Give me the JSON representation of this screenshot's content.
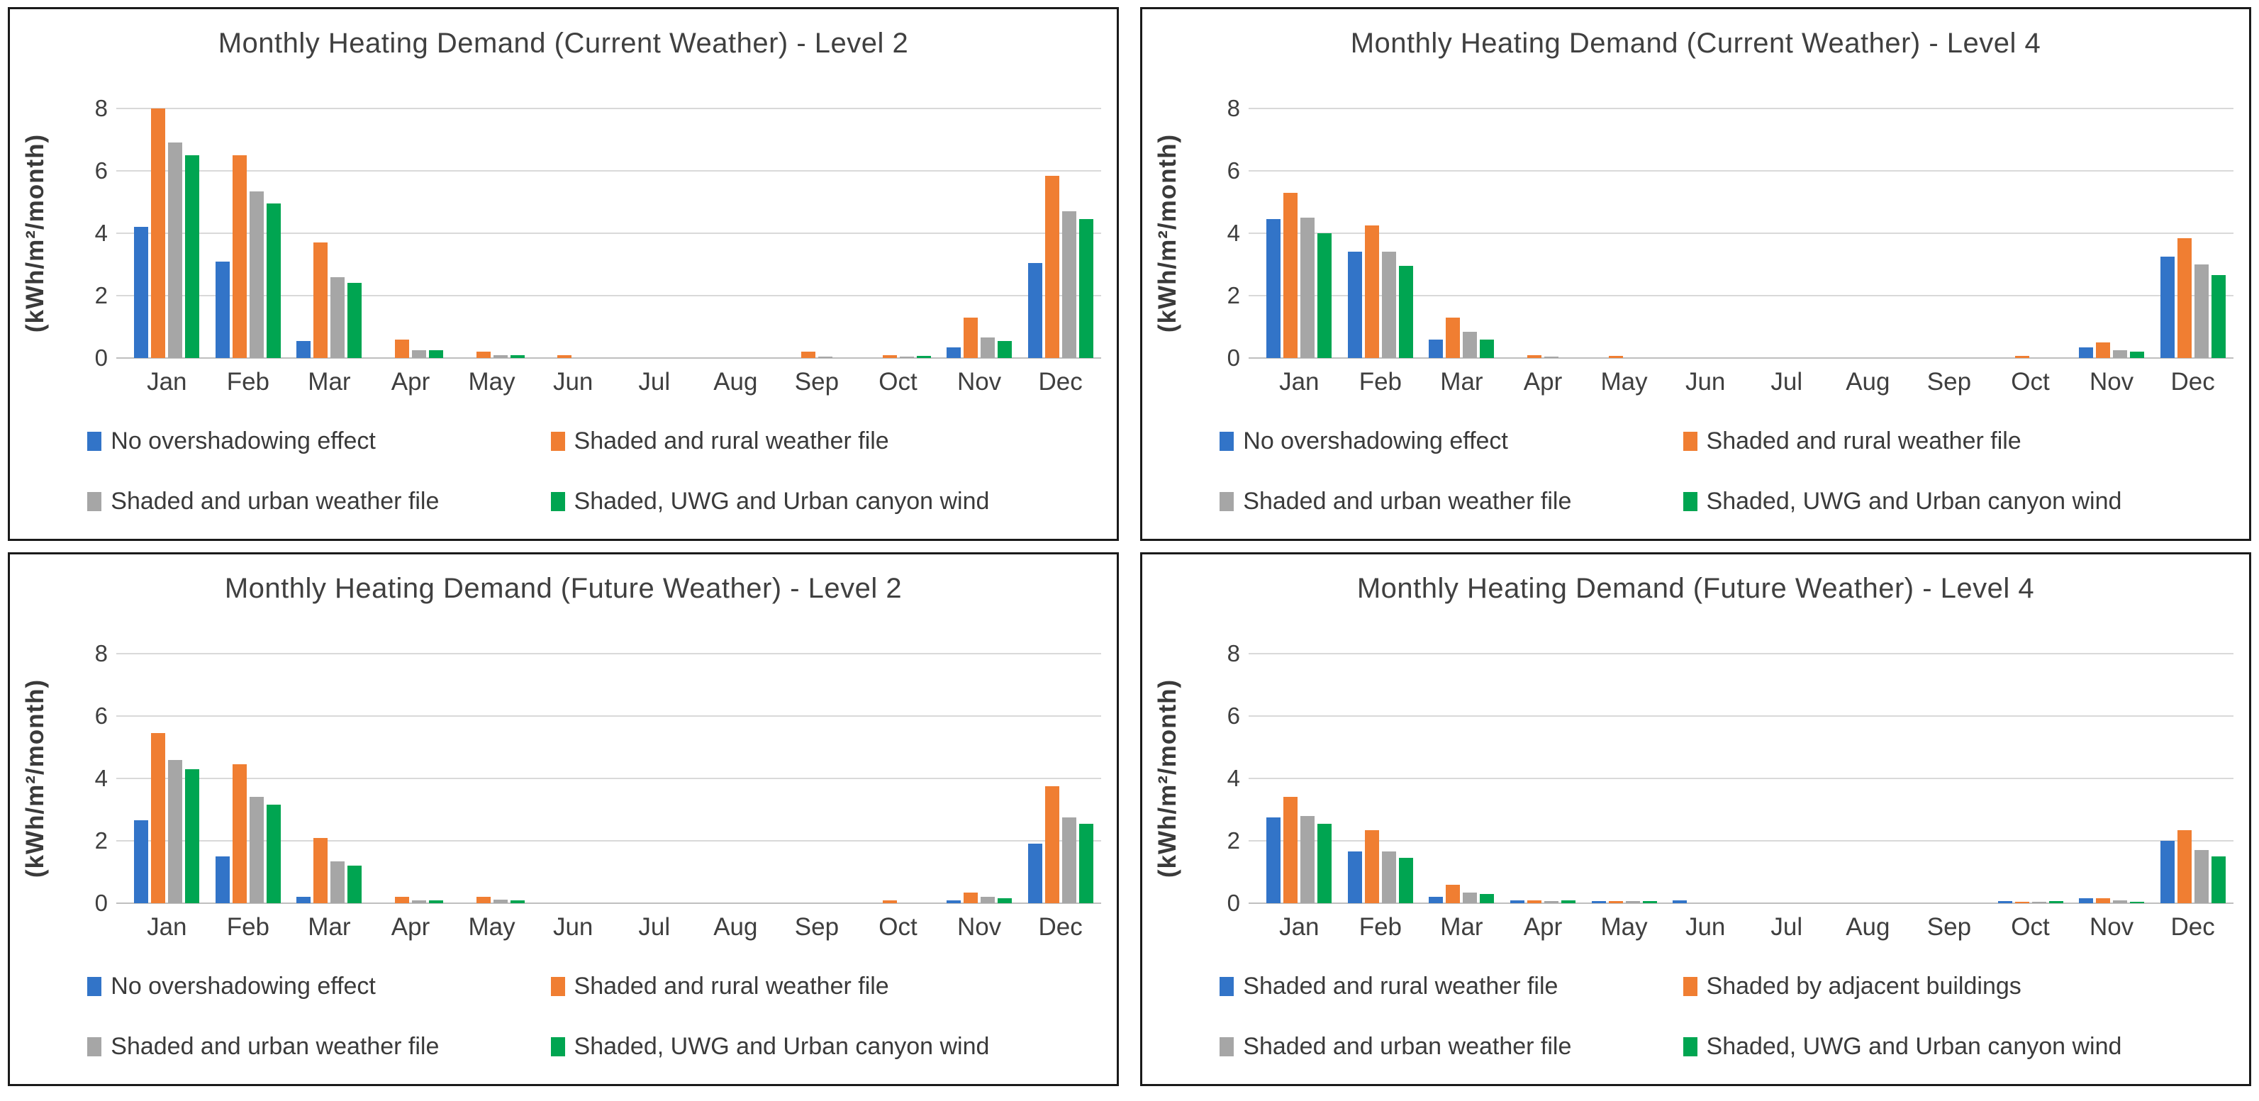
{
  "page": {
    "background": "#ffffff",
    "panel_border": "#1a1a1a"
  },
  "colors": {
    "blue": "#3274C8",
    "orange": "#F07E32",
    "gray": "#A6A6A6",
    "green": "#00A551",
    "gridline": "#d9d9d9",
    "axis_line": "#bfbfbf",
    "text": "#3f3f3f"
  },
  "months": [
    "Jan",
    "Feb",
    "Mar",
    "Apr",
    "May",
    "Jun",
    "Jul",
    "Aug",
    "Sep",
    "Oct",
    "Nov",
    "Dec"
  ],
  "chart_data": [
    {
      "type": "bar",
      "title": "Monthly Heating Demand (Current Weather) - Level 2",
      "ylabel": "(kWh/m²/month)",
      "ylim": [
        0,
        8
      ],
      "yticks": [
        0,
        2,
        4,
        6,
        8
      ],
      "grid": true,
      "legend_position": "bottom",
      "categories": [
        "Jan",
        "Feb",
        "Mar",
        "Apr",
        "May",
        "Jun",
        "Jul",
        "Aug",
        "Sep",
        "Oct",
        "Nov",
        "Dec"
      ],
      "series": [
        {
          "name": "No overshadowing effect",
          "color": "#3274C8",
          "values": [
            4.2,
            3.1,
            0.55,
            0,
            0,
            0,
            0,
            0,
            0,
            0,
            0.35,
            3.05
          ]
        },
        {
          "name": "Shaded and rural weather file",
          "color": "#F07E32",
          "values": [
            8.0,
            6.5,
            3.7,
            0.6,
            0.2,
            0.1,
            0,
            0,
            0.2,
            0.1,
            1.3,
            5.85
          ]
        },
        {
          "name": "Shaded and urban weather file",
          "color": "#A6A6A6",
          "values": [
            6.9,
            5.35,
            2.6,
            0.25,
            0.1,
            0,
            0,
            0,
            0.05,
            0.05,
            0.65,
            4.7
          ]
        },
        {
          "name": "Shaded, UWG and Urban canyon wind",
          "color": "#00A551",
          "values": [
            6.5,
            4.95,
            2.4,
            0.25,
            0.1,
            0,
            0,
            0,
            0,
            0.07,
            0.55,
            4.45
          ]
        }
      ]
    },
    {
      "type": "bar",
      "title": "Monthly Heating Demand (Current Weather) - Level 4",
      "ylabel": "(kWh/m²/month)",
      "ylim": [
        0,
        8
      ],
      "yticks": [
        0,
        2,
        4,
        6,
        8
      ],
      "grid": true,
      "legend_position": "bottom",
      "categories": [
        "Jan",
        "Feb",
        "Mar",
        "Apr",
        "May",
        "Jun",
        "Jul",
        "Aug",
        "Sep",
        "Oct",
        "Nov",
        "Dec"
      ],
      "series": [
        {
          "name": "No overshadowing effect",
          "color": "#3274C8",
          "values": [
            4.45,
            3.4,
            0.6,
            0,
            0,
            0,
            0,
            0,
            0,
            0,
            0.35,
            3.25
          ]
        },
        {
          "name": "Shaded and rural weather file",
          "color": "#F07E32",
          "values": [
            5.3,
            4.25,
            1.3,
            0.1,
            0.06,
            0,
            0,
            0,
            0,
            0.07,
            0.5,
            3.85
          ]
        },
        {
          "name": "Shaded and urban weather file",
          "color": "#A6A6A6",
          "values": [
            4.5,
            3.4,
            0.85,
            0.05,
            0,
            0,
            0,
            0,
            0,
            0,
            0.25,
            3.0
          ]
        },
        {
          "name": "Shaded, UWG and Urban canyon wind",
          "color": "#00A551",
          "values": [
            4.0,
            2.95,
            0.6,
            0,
            0,
            0,
            0,
            0,
            0,
            0,
            0.2,
            2.65
          ]
        }
      ]
    },
    {
      "type": "bar",
      "title": "Monthly Heating Demand (Future Weather) - Level 2",
      "ylabel": "(kWh/m²/month)",
      "ylim": [
        0,
        8
      ],
      "yticks": [
        0,
        2,
        4,
        6,
        8
      ],
      "grid": true,
      "legend_position": "bottom",
      "categories": [
        "Jan",
        "Feb",
        "Mar",
        "Apr",
        "May",
        "Jun",
        "Jul",
        "Aug",
        "Sep",
        "Oct",
        "Nov",
        "Dec"
      ],
      "series": [
        {
          "name": "No overshadowing effect",
          "color": "#3274C8",
          "values": [
            2.65,
            1.5,
            0.2,
            0,
            0,
            0,
            0,
            0,
            0,
            0,
            0.1,
            1.9
          ]
        },
        {
          "name": "Shaded and rural weather file",
          "color": "#F07E32",
          "values": [
            5.45,
            4.45,
            2.1,
            0.2,
            0.2,
            0,
            0,
            0,
            0,
            0.1,
            0.35,
            3.75
          ]
        },
        {
          "name": "Shaded and urban weather file",
          "color": "#A6A6A6",
          "values": [
            4.6,
            3.4,
            1.35,
            0.1,
            0.12,
            0,
            0,
            0,
            0,
            0,
            0.2,
            2.75
          ]
        },
        {
          "name": "Shaded, UWG and Urban canyon wind",
          "color": "#00A551",
          "values": [
            4.3,
            3.15,
            1.2,
            0.1,
            0.1,
            0,
            0,
            0,
            0,
            0,
            0.15,
            2.55
          ]
        }
      ]
    },
    {
      "type": "bar",
      "title": "Monthly Heating Demand (Future Weather) - Level 4",
      "ylabel": "(kWh/m²/month)",
      "ylim": [
        0,
        8
      ],
      "yticks": [
        0,
        2,
        4,
        6,
        8
      ],
      "grid": true,
      "legend_position": "bottom",
      "categories": [
        "Jan",
        "Feb",
        "Mar",
        "Apr",
        "May",
        "Jun",
        "Jul",
        "Aug",
        "Sep",
        "Oct",
        "Nov",
        "Dec"
      ],
      "series": [
        {
          "name": "Shaded and rural weather file",
          "color": "#3274C8",
          "values": [
            2.75,
            1.65,
            0.2,
            0.08,
            0.07,
            0.08,
            0,
            0,
            0,
            0.06,
            0.15,
            2.0
          ]
        },
        {
          "name": "Shaded by adjacent buildings",
          "color": "#F07E32",
          "values": [
            3.4,
            2.35,
            0.6,
            0.08,
            0.07,
            0,
            0,
            0,
            0,
            0.05,
            0.15,
            2.35
          ]
        },
        {
          "name": "Shaded and urban weather file",
          "color": "#A6A6A6",
          "values": [
            2.8,
            1.65,
            0.35,
            0.07,
            0.07,
            0,
            0,
            0,
            0,
            0.05,
            0.1,
            1.7
          ]
        },
        {
          "name": "Shaded, UWG and Urban canyon wind",
          "color": "#00A551",
          "values": [
            2.55,
            1.45,
            0.3,
            0.08,
            0.07,
            0,
            0,
            0,
            0,
            0.06,
            0.05,
            1.5
          ]
        }
      ]
    }
  ]
}
